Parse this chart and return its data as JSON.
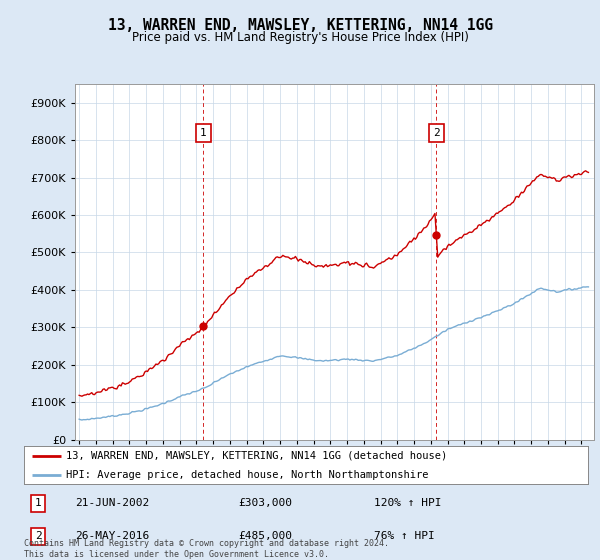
{
  "title": "13, WARREN END, MAWSLEY, KETTERING, NN14 1GG",
  "subtitle": "Price paid vs. HM Land Registry's House Price Index (HPI)",
  "red_label": "13, WARREN END, MAWSLEY, KETTERING, NN14 1GG (detached house)",
  "blue_label": "HPI: Average price, detached house, North Northamptonshire",
  "marker1_date": "21-JUN-2002",
  "marker1_price": 303000,
  "marker1_hpi": "120% ↑ HPI",
  "marker2_date": "26-MAY-2016",
  "marker2_price": 485000,
  "marker2_hpi": "76% ↑ HPI",
  "footer": "Contains HM Land Registry data © Crown copyright and database right 2024.\nThis data is licensed under the Open Government Licence v3.0.",
  "background_color": "#dce8f5",
  "plot_bg_color": "#ffffff",
  "red_color": "#cc0000",
  "blue_color": "#7aadd4",
  "ylim": [
    0,
    950000
  ],
  "yticks": [
    0,
    100000,
    200000,
    300000,
    400000,
    500000,
    600000,
    700000,
    800000,
    900000
  ],
  "sale1_year": 2002,
  "sale1_month": 6,
  "sale1_price": 303000,
  "sale2_year": 2016,
  "sale2_month": 5,
  "sale2_price": 485000,
  "hpi_key_years": [
    1995.0,
    1996.0,
    1997.0,
    1998.0,
    1999.0,
    2000.0,
    2001.0,
    2002.5,
    2003.5,
    2005.0,
    2007.0,
    2008.5,
    2009.5,
    2011.0,
    2012.5,
    2014.0,
    2015.5,
    2017.0,
    2018.5,
    2019.5,
    2021.0,
    2022.5,
    2023.5,
    2025.5
  ],
  "hpi_key_vals": [
    52000,
    57000,
    63000,
    71000,
    82000,
    97000,
    115000,
    138000,
    165000,
    195000,
    225000,
    215000,
    210000,
    215000,
    210000,
    225000,
    255000,
    295000,
    320000,
    335000,
    365000,
    405000,
    395000,
    410000
  ]
}
